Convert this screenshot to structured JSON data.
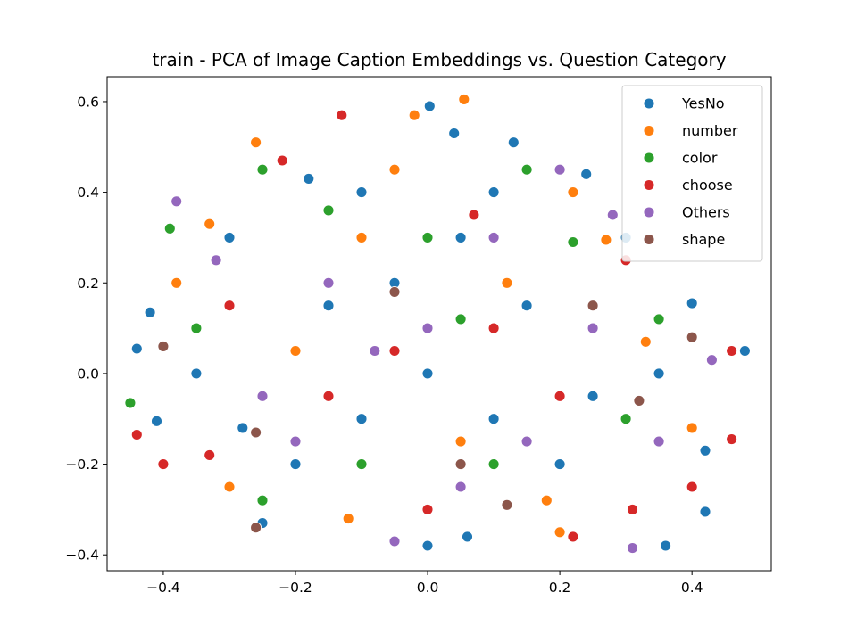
{
  "chart_data": {
    "type": "scatter",
    "title": "train - PCA of Image Caption Embeddings vs. Question Category",
    "xlabel": "",
    "ylabel": "",
    "xlim": [
      -0.485,
      0.52
    ],
    "ylim": [
      -0.435,
      0.655
    ],
    "x_ticks": [
      {
        "value": -0.4,
        "label": "−0.4"
      },
      {
        "value": -0.2,
        "label": "−0.2"
      },
      {
        "value": 0.0,
        "label": "0.0"
      },
      {
        "value": 0.2,
        "label": "0.2"
      },
      {
        "value": 0.4,
        "label": "0.4"
      }
    ],
    "y_ticks": [
      {
        "value": -0.4,
        "label": "−0.4"
      },
      {
        "value": -0.2,
        "label": "−0.2"
      },
      {
        "value": 0.0,
        "label": "0.0"
      },
      {
        "value": 0.2,
        "label": "0.2"
      },
      {
        "value": 0.4,
        "label": "0.4"
      },
      {
        "value": 0.6,
        "label": "0.6"
      }
    ],
    "grid": false,
    "legend_position": "top-right",
    "series": [
      {
        "name": "YesNo",
        "color": "#1f77b4",
        "points": [
          [
            0.003,
            0.59
          ],
          [
            0.04,
            0.53
          ],
          [
            -0.26,
            0.51
          ],
          [
            0.13,
            0.51
          ],
          [
            -0.18,
            0.43
          ],
          [
            0.24,
            0.44
          ],
          [
            -0.44,
            0.055
          ],
          [
            0.48,
            0.05
          ],
          [
            -0.42,
            0.135
          ],
          [
            0.4,
            0.155
          ],
          [
            -0.41,
            -0.105
          ],
          [
            0.42,
            -0.17
          ],
          [
            -0.25,
            -0.33
          ],
          [
            0.42,
            -0.305
          ],
          [
            0.0,
            -0.38
          ],
          [
            0.36,
            -0.38
          ],
          [
            -0.3,
            0.3
          ],
          [
            0.3,
            0.3
          ],
          [
            -0.1,
            0.4
          ],
          [
            0.1,
            0.4
          ],
          [
            -0.35,
            0.0
          ],
          [
            0.35,
            0.0
          ],
          [
            -0.2,
            -0.2
          ],
          [
            0.2,
            -0.2
          ],
          [
            0.0,
            0.0
          ],
          [
            -0.15,
            0.15
          ],
          [
            0.15,
            0.15
          ],
          [
            -0.1,
            -0.1
          ],
          [
            0.1,
            -0.1
          ],
          [
            0.05,
            0.3
          ],
          [
            -0.05,
            0.2
          ],
          [
            0.25,
            -0.05
          ],
          [
            -0.28,
            -0.12
          ],
          [
            0.06,
            -0.36
          ]
        ]
      },
      {
        "name": "number",
        "color": "#ff7f0e",
        "points": [
          [
            0.055,
            0.605
          ],
          [
            -0.26,
            0.51
          ],
          [
            -0.02,
            0.57
          ],
          [
            0.27,
            0.295
          ],
          [
            -0.38,
            0.2
          ],
          [
            0.33,
            0.07
          ],
          [
            -0.3,
            -0.25
          ],
          [
            0.2,
            -0.35
          ],
          [
            -0.1,
            0.3
          ],
          [
            0.12,
            0.2
          ],
          [
            -0.2,
            0.05
          ],
          [
            0.05,
            -0.15
          ],
          [
            -0.05,
            0.45
          ],
          [
            0.22,
            0.4
          ],
          [
            -0.33,
            0.33
          ],
          [
            0.18,
            -0.28
          ],
          [
            0.4,
            -0.12
          ],
          [
            -0.12,
            -0.32
          ]
        ]
      },
      {
        "name": "color",
        "color": "#2ca02c",
        "points": [
          [
            -0.39,
            0.32
          ],
          [
            -0.25,
            0.45
          ],
          [
            -0.45,
            -0.065
          ],
          [
            0.15,
            0.45
          ],
          [
            0.3,
            -0.1
          ],
          [
            -0.1,
            -0.2
          ],
          [
            0.0,
            0.3
          ],
          [
            -0.25,
            -0.28
          ],
          [
            0.22,
            0.29
          ],
          [
            0.1,
            -0.2
          ],
          [
            -0.35,
            0.1
          ],
          [
            0.35,
            0.12
          ],
          [
            -0.15,
            0.36
          ],
          [
            0.05,
            0.12
          ]
        ]
      },
      {
        "name": "choose",
        "color": "#d62828",
        "points": [
          [
            -0.22,
            0.47
          ],
          [
            -0.13,
            0.57
          ],
          [
            0.3,
            0.25
          ],
          [
            0.46,
            0.05
          ],
          [
            0.46,
            -0.145
          ],
          [
            -0.44,
            -0.135
          ],
          [
            -0.4,
            -0.2
          ],
          [
            0.31,
            -0.3
          ],
          [
            0.22,
            -0.36
          ],
          [
            -0.15,
            -0.05
          ],
          [
            0.1,
            0.1
          ],
          [
            0.2,
            -0.05
          ],
          [
            -0.3,
            0.15
          ],
          [
            0.0,
            -0.3
          ],
          [
            0.4,
            -0.25
          ],
          [
            -0.33,
            -0.18
          ],
          [
            0.07,
            0.35
          ],
          [
            -0.05,
            0.05
          ]
        ]
      },
      {
        "name": "Others",
        "color": "#9467bd",
        "points": [
          [
            -0.38,
            0.38
          ],
          [
            0.2,
            0.45
          ],
          [
            -0.05,
            -0.37
          ],
          [
            0.31,
            -0.385
          ],
          [
            0.0,
            0.1
          ],
          [
            -0.25,
            -0.05
          ],
          [
            0.1,
            0.3
          ],
          [
            0.25,
            0.1
          ],
          [
            -0.15,
            0.2
          ],
          [
            0.15,
            -0.15
          ],
          [
            -0.08,
            0.05
          ],
          [
            0.35,
            -0.15
          ],
          [
            -0.32,
            0.25
          ],
          [
            0.28,
            0.35
          ],
          [
            0.05,
            -0.25
          ],
          [
            -0.2,
            -0.15
          ],
          [
            0.43,
            0.03
          ]
        ]
      },
      {
        "name": "shape",
        "color": "#8c564b",
        "points": [
          [
            -0.26,
            -0.34
          ],
          [
            -0.4,
            0.06
          ],
          [
            0.12,
            -0.29
          ],
          [
            0.4,
            0.08
          ],
          [
            -0.26,
            -0.13
          ],
          [
            0.25,
            0.15
          ],
          [
            -0.05,
            0.18
          ],
          [
            0.05,
            -0.2
          ],
          [
            0.32,
            -0.06
          ]
        ]
      }
    ]
  }
}
